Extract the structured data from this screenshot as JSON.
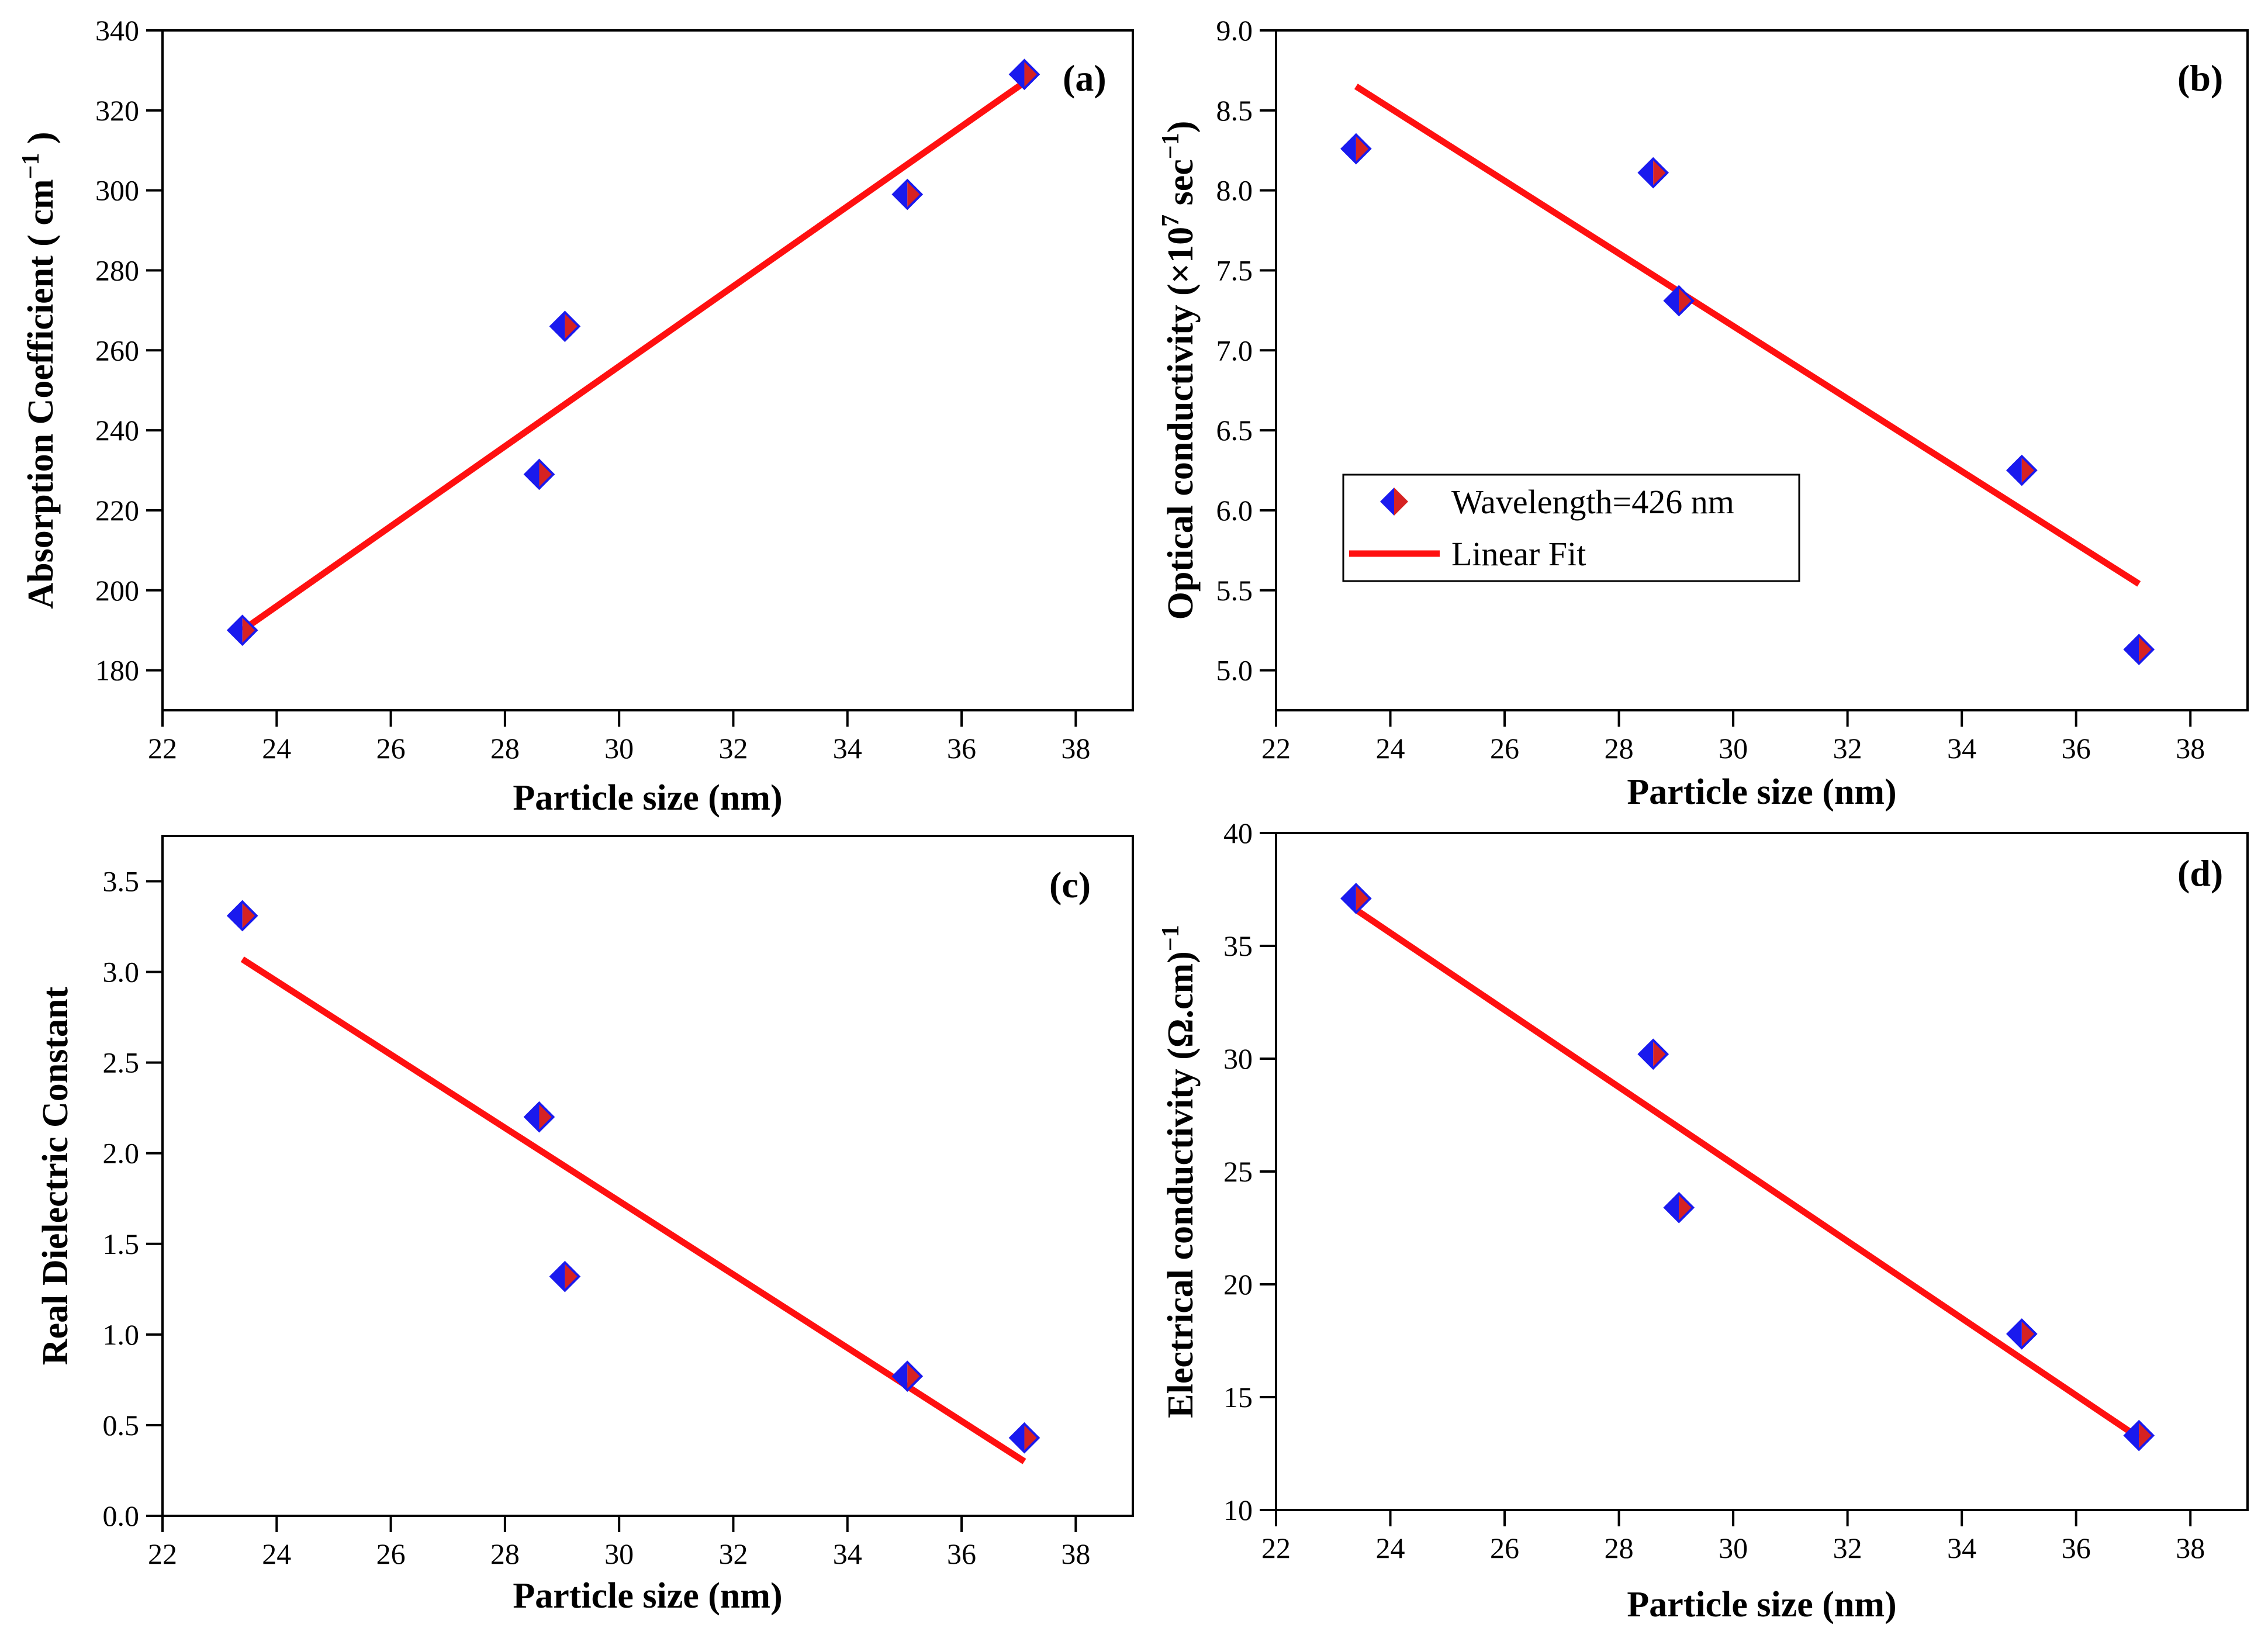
{
  "legend": {
    "scatter_label": "Wavelength=426 nm",
    "line_label": "Linear Fit"
  },
  "colors": {
    "marker": "#1a1aee",
    "marker_shade": "#d62222",
    "fit": "#ff1010"
  },
  "chart_data": [
    {
      "id": "a",
      "type": "scatter",
      "panel_tag": "(a)",
      "xlabel": "Particle size (nm)",
      "ylabel": "Absorption Coefficient ( cm",
      "ylabel_sup": "−1",
      "ylabel_tail": " )",
      "xlim": [
        22,
        39
      ],
      "ylim": [
        170,
        340
      ],
      "xticks": [
        22,
        24,
        26,
        28,
        30,
        32,
        34,
        36,
        38
      ],
      "yticks": [
        180,
        200,
        220,
        240,
        260,
        280,
        300,
        320,
        340
      ],
      "x": [
        23.4,
        28.6,
        29.05,
        35.05,
        37.1
      ],
      "y": [
        190,
        229,
        266,
        299,
        329
      ],
      "fit": {
        "x": [
          23.4,
          37.1
        ],
        "y": [
          190,
          327
        ]
      },
      "grid": false
    },
    {
      "id": "b",
      "type": "scatter",
      "panel_tag": "(b)",
      "xlabel": "Particle size (nm)",
      "ylabel": "Optical conductivity (×10",
      "ylabel_sup": "7",
      "ylabel_mid": " sec",
      "ylabel_sup2": "−1",
      "ylabel_tail": ")",
      "xlim": [
        22,
        39
      ],
      "ylim": [
        4.75,
        9.0
      ],
      "xticks": [
        22,
        24,
        26,
        28,
        30,
        32,
        34,
        36,
        38
      ],
      "yticks": [
        5.0,
        5.5,
        6.0,
        6.5,
        7.0,
        7.5,
        8.0,
        8.5,
        9.0
      ],
      "x": [
        23.4,
        28.6,
        29.05,
        35.05,
        37.1
      ],
      "y": [
        8.26,
        8.11,
        7.31,
        6.25,
        5.13
      ],
      "fit": {
        "x": [
          23.4,
          37.1
        ],
        "y": [
          8.65,
          5.54
        ]
      },
      "legend_position": "center-left",
      "grid": false
    },
    {
      "id": "c",
      "type": "scatter",
      "panel_tag": "(c)",
      "xlabel": "Particle size (nm)",
      "ylabel": "Real Dielectric Constant",
      "xlim": [
        22,
        39
      ],
      "ylim": [
        0.0,
        3.75
      ],
      "xticks": [
        22,
        24,
        26,
        28,
        30,
        32,
        34,
        36,
        38
      ],
      "yticks": [
        0.0,
        0.5,
        1.0,
        1.5,
        2.0,
        2.5,
        3.0,
        3.5
      ],
      "x": [
        23.4,
        28.6,
        29.05,
        35.05,
        37.1
      ],
      "y": [
        3.31,
        2.2,
        1.32,
        0.77,
        0.43
      ],
      "fit": {
        "x": [
          23.4,
          37.1
        ],
        "y": [
          3.07,
          0.3
        ]
      },
      "grid": false
    },
    {
      "id": "d",
      "type": "scatter",
      "panel_tag": "(d)",
      "xlabel": "Particle size (nm)",
      "ylabel": "Electrical conductivity (Ω.cm)",
      "ylabel_sup": "−1",
      "xlim": [
        22,
        39
      ],
      "ylim": [
        10,
        40
      ],
      "xticks": [
        22,
        24,
        26,
        28,
        30,
        32,
        34,
        36,
        38
      ],
      "yticks": [
        10,
        15,
        20,
        25,
        30,
        35,
        40
      ],
      "x": [
        23.4,
        28.6,
        29.05,
        35.05,
        37.1
      ],
      "y": [
        37.1,
        30.2,
        23.4,
        17.8,
        13.3
      ],
      "fit": {
        "x": [
          23.4,
          37.1
        ],
        "y": [
          36.6,
          13.2
        ]
      },
      "grid": false
    }
  ]
}
